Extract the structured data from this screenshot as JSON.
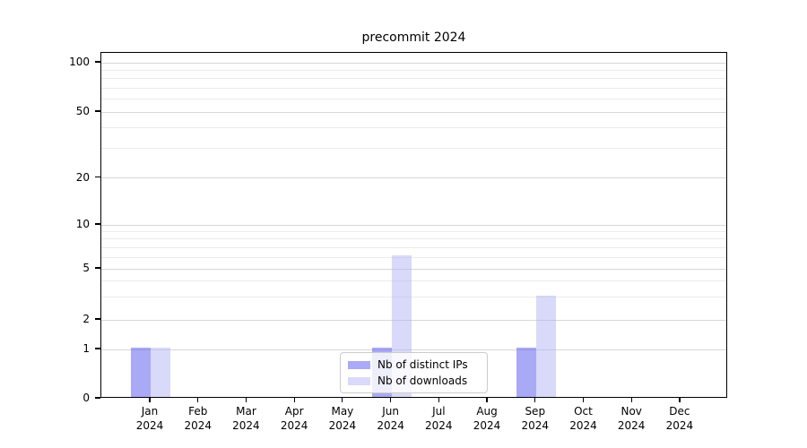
{
  "chart_data": {
    "type": "bar",
    "title": "precommit 2024",
    "categories": [
      "Jan",
      "Feb",
      "Mar",
      "Apr",
      "May",
      "Jun",
      "Jul",
      "Aug",
      "Sep",
      "Oct",
      "Nov",
      "Dec"
    ],
    "category_year": "2024",
    "series": [
      {
        "name": "Nb of distinct IPs",
        "values": [
          1,
          0,
          0,
          0,
          0,
          1,
          0,
          0,
          1,
          0,
          0,
          0
        ]
      },
      {
        "name": "Nb of downloads",
        "values": [
          1,
          0,
          0,
          0,
          0,
          6,
          0,
          0,
          3,
          0,
          0,
          0
        ]
      }
    ],
    "y_axis": {
      "scale": "log-above-1-linear-below",
      "major_ticks": [
        0,
        1,
        2,
        5,
        10,
        20,
        50,
        100
      ],
      "minor_ticks": [
        3,
        4,
        6,
        7,
        8,
        9,
        30,
        40,
        60,
        70,
        80,
        90
      ],
      "ylim": [
        0,
        110
      ]
    },
    "legend": {
      "position": "bottom-center"
    },
    "grid": "horizontal-major-and-minor"
  },
  "colors": {
    "bar_distinct_ips": "rgba(84,84,238,0.5)",
    "bar_downloads": "rgba(180,180,243,0.5)",
    "legend_swatch_ips": "#aaaaf6",
    "legend_swatch_downloads": "#d9d9f9",
    "grid_major": "#d7d7d7",
    "grid_minor": "#ebebeb",
    "axis": "#000000"
  }
}
